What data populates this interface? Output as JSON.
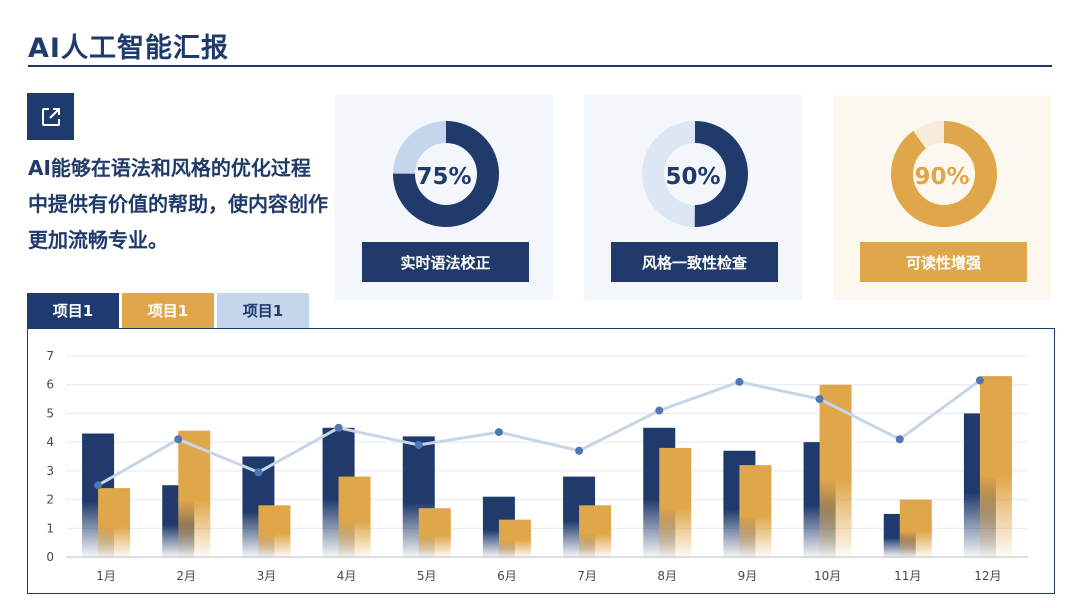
{
  "header": {
    "title": "AI人工智能汇报"
  },
  "icons": {
    "share": "external-link-icon"
  },
  "intro_text": "AI能够在语法和风格的优化过程中提供有价值的帮助，使内容创作更加流畅专业。",
  "colors": {
    "navy": "#1f3a6b",
    "gold": "#e0a64a",
    "light_blue": "#c5d5ec",
    "line": "#c6d6e6",
    "card_blue_bg": "#f3f7fb",
    "card_gold_bg": "#fdf8ef"
  },
  "cards": [
    {
      "percent_label": "75%",
      "value": 0.75,
      "label": "实时语法校正"
    },
    {
      "percent_label": "50%",
      "value": 0.5,
      "label": "风格一致性检查"
    },
    {
      "percent_label": "90%",
      "value": 0.9,
      "label": "可读性增强"
    }
  ],
  "tabs": [
    {
      "label": "项目1"
    },
    {
      "label": "项目1"
    },
    {
      "label": "项目1"
    }
  ],
  "chart_data": {
    "type": "bar",
    "categories": [
      "1月",
      "2月",
      "3月",
      "4月",
      "5月",
      "6月",
      "7月",
      "8月",
      "9月",
      "10月",
      "11月",
      "12月"
    ],
    "series": [
      {
        "type": "bar",
        "values": [
          4.3,
          2.5,
          3.5,
          4.5,
          4.2,
          2.1,
          2.8,
          4.5,
          3.7,
          4.0,
          1.5,
          5.0
        ]
      },
      {
        "type": "bar",
        "values": [
          2.4,
          4.4,
          1.8,
          2.8,
          1.7,
          1.3,
          1.8,
          3.8,
          3.2,
          6.0,
          2.0,
          6.3
        ]
      },
      {
        "type": "line",
        "values": [
          2.5,
          4.1,
          2.95,
          4.5,
          3.9,
          4.35,
          3.7,
          5.1,
          6.1,
          5.5,
          4.1,
          6.15
        ]
      }
    ],
    "ylim": [
      0,
      7
    ],
    "yticks": [
      "0",
      "1",
      "2",
      "3",
      "4",
      "5",
      "6",
      "7"
    ],
    "grid": true
  }
}
